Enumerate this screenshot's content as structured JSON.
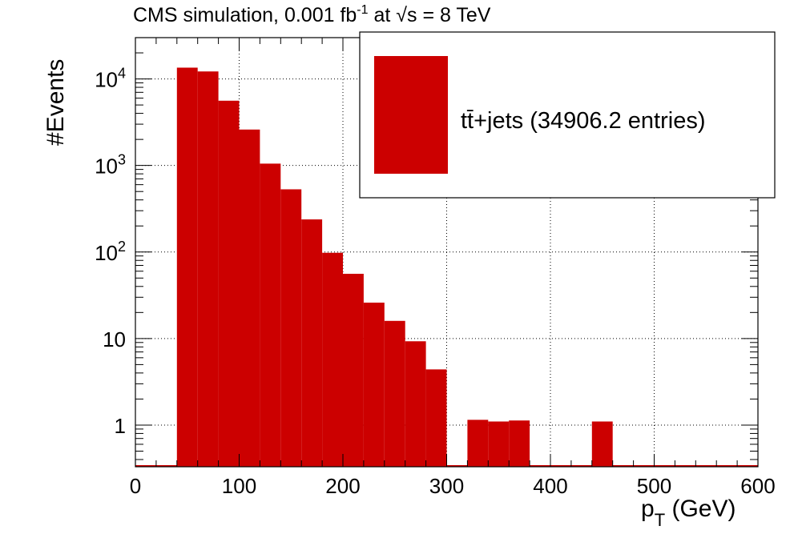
{
  "chart_data": {
    "type": "bar",
    "title_main": "CMS simulation, 0.001 fb",
    "title_sup": "-1",
    "title_mid": " at ",
    "title_sqrt": "√s",
    "title_end": " = 8 TeV",
    "xlabel_main": "p",
    "xlabel_sub": "T",
    "xlabel_units": " (GeV)",
    "ylabel": "#Events",
    "xlim": [
      0,
      600
    ],
    "ylim": [
      0.33,
      30000
    ],
    "yscale": "log",
    "grid": true,
    "bin_width": 20,
    "x": [
      40,
      60,
      80,
      100,
      120,
      140,
      160,
      180,
      200,
      220,
      240,
      260,
      280,
      300,
      320,
      340,
      360,
      380,
      400,
      420,
      440,
      460,
      480,
      500,
      520,
      540,
      560,
      580
    ],
    "values": [
      13500,
      12200,
      5600,
      2600,
      1050,
      530,
      238,
      98,
      56,
      26,
      16,
      9.3,
      4.4,
      0,
      1.15,
      1.1,
      1.13,
      0,
      0,
      0,
      1.1,
      0,
      0,
      0,
      0,
      0,
      0,
      0
    ],
    "series_color": "#cc0000",
    "x_ticks": [
      "0",
      "100",
      "200",
      "300",
      "400",
      "500",
      "600"
    ],
    "y_ticks": [
      "1",
      "10",
      "10",
      "10",
      "10"
    ],
    "y_tick_exponents": [
      "",
      "",
      "2",
      "3",
      "4"
    ],
    "legend": {
      "placement": "top-right",
      "entry_label": "tt̄+jets (34906.2 entries)"
    }
  }
}
